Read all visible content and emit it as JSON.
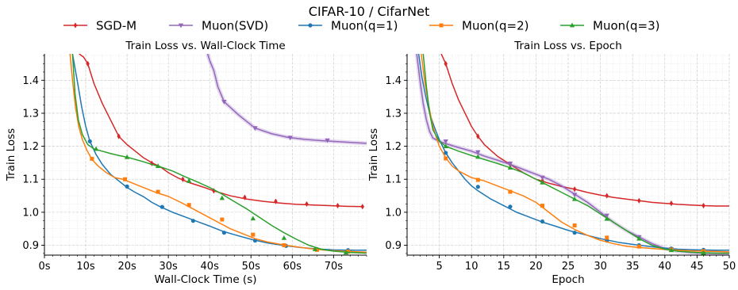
{
  "figure": {
    "suptitle": "CIFAR-10 / CifarNet"
  },
  "legend": {
    "placement": "top-center",
    "entries": [
      {
        "name": "SGD-M",
        "color": "#d62728",
        "marker": "diamond"
      },
      {
        "name": "Muon(SVD)",
        "color": "#9467bd",
        "marker": "triangle-down"
      },
      {
        "name": "Muon(q=1)",
        "color": "#1f77b4",
        "marker": "circle"
      },
      {
        "name": "Muon(q=2)",
        "color": "#ff7f0e",
        "marker": "square"
      },
      {
        "name": "Muon(q=3)",
        "color": "#2ca02c",
        "marker": "triangle-up"
      }
    ]
  },
  "chart_data": [
    {
      "type": "line",
      "title": "Train Loss vs. Wall-Clock Time",
      "xlabel": "Wall-Clock Time (s)",
      "ylabel": "Train Loss",
      "xlim": [
        0,
        78
      ],
      "ylim": [
        0.87,
        1.48
      ],
      "xticks": [
        0,
        10,
        20,
        30,
        40,
        50,
        60,
        70
      ],
      "xtick_labels": [
        "0s",
        "10s",
        "20s",
        "30s",
        "40s",
        "50s",
        "60s",
        "70s"
      ],
      "yticks": [
        0.9,
        1.0,
        1.1,
        1.2,
        1.3,
        1.4
      ],
      "ytick_labels": [
        "0.9",
        "1.0",
        "1.1",
        "1.2",
        "1.3",
        "1.4"
      ],
      "grid": true,
      "series": [
        {
          "name": "SGD-M",
          "color": "#d62728",
          "x": [
            8.4,
            9.5,
            10.5,
            12,
            14,
            16,
            18,
            20,
            22,
            24,
            26,
            28,
            30,
            32.5,
            35,
            38,
            41,
            45,
            49,
            53,
            57,
            61,
            65,
            69,
            73,
            77
          ],
          "y": [
            1.48,
            1.47,
            1.45,
            1.39,
            1.33,
            1.28,
            1.23,
            1.205,
            1.185,
            1.165,
            1.15,
            1.138,
            1.12,
            1.103,
            1.09,
            1.078,
            1.065,
            1.05,
            1.04,
            1.033,
            1.028,
            1.024,
            1.022,
            1.02,
            1.018,
            1.017
          ],
          "marker_x": [
            10.5,
            18,
            26,
            33.5,
            41,
            48.5,
            56,
            63.5,
            71,
            77
          ],
          "marker_y": [
            1.45,
            1.23,
            1.148,
            1.1,
            1.065,
            1.045,
            1.033,
            1.025,
            1.02,
            1.017
          ]
        },
        {
          "name": "Muon(SVD)",
          "color": "#9467bd",
          "x": [
            39.5,
            40,
            41,
            42,
            43.5,
            47,
            51,
            55,
            59,
            63,
            67,
            71,
            75,
            78
          ],
          "y": [
            1.48,
            1.46,
            1.43,
            1.38,
            1.335,
            1.295,
            1.255,
            1.238,
            1.227,
            1.221,
            1.217,
            1.214,
            1.211,
            1.209
          ],
          "marker_x": [
            43.5,
            51,
            59.5,
            68.5
          ],
          "marker_y": [
            1.335,
            1.255,
            1.226,
            1.218
          ]
        },
        {
          "name": "Muon(q=1)",
          "color": "#1f77b4",
          "x": [
            6.8,
            7.5,
            8.2,
            9,
            10,
            11,
            12.5,
            14,
            16,
            18,
            20,
            22,
            24,
            26,
            28,
            31,
            34,
            37,
            40,
            43,
            46,
            50,
            54,
            58,
            62,
            66,
            70,
            74,
            78
          ],
          "y": [
            1.48,
            1.43,
            1.38,
            1.32,
            1.26,
            1.215,
            1.175,
            1.145,
            1.115,
            1.095,
            1.075,
            1.06,
            1.047,
            1.03,
            1.017,
            1.0,
            0.986,
            0.972,
            0.958,
            0.943,
            0.932,
            0.918,
            0.907,
            0.899,
            0.893,
            0.889,
            0.886,
            0.885,
            0.885
          ],
          "marker_x": [
            11,
            20,
            28.5,
            36,
            43.5,
            51,
            58.5,
            66,
            73.5
          ],
          "marker_y": [
            1.215,
            1.078,
            1.016,
            0.974,
            0.938,
            0.914,
            0.898,
            0.888,
            0.885
          ]
        },
        {
          "name": "Muon(q=2)",
          "color": "#ff7f0e",
          "x": [
            6.2,
            6.8,
            7.5,
            8.3,
            9.2,
            10.2,
            11.5,
            13,
            15,
            17,
            19,
            21,
            24,
            27,
            30,
            33,
            36,
            39,
            42,
            45,
            48,
            51,
            54,
            57,
            60,
            64,
            68,
            72,
            76,
            78
          ],
          "y": [
            1.48,
            1.4,
            1.32,
            1.26,
            1.22,
            1.19,
            1.16,
            1.14,
            1.12,
            1.105,
            1.1,
            1.09,
            1.075,
            1.06,
            1.048,
            1.03,
            1.01,
            0.99,
            0.97,
            0.95,
            0.935,
            0.92,
            0.91,
            0.903,
            0.897,
            0.89,
            0.885,
            0.882,
            0.88,
            0.879
          ],
          "marker_x": [
            11.5,
            19.5,
            27.5,
            35,
            43,
            50.5,
            58,
            66,
            73.5
          ],
          "marker_y": [
            1.162,
            1.1,
            1.062,
            1.022,
            0.978,
            0.932,
            0.9,
            0.886,
            0.881
          ]
        },
        {
          "name": "Muon(q=3)",
          "color": "#2ca02c",
          "x": [
            6.8,
            7.4,
            8.2,
            9.2,
            10.5,
            12,
            14,
            16,
            18,
            20,
            22,
            24,
            26,
            28,
            31,
            34,
            37,
            40,
            43,
            46,
            49,
            52,
            55,
            58,
            61,
            64,
            67,
            70,
            74,
            78
          ],
          "y": [
            1.48,
            1.36,
            1.28,
            1.235,
            1.205,
            1.192,
            1.185,
            1.178,
            1.172,
            1.167,
            1.16,
            1.153,
            1.145,
            1.138,
            1.125,
            1.108,
            1.092,
            1.075,
            1.055,
            1.032,
            1.01,
            0.985,
            0.96,
            0.938,
            0.918,
            0.9,
            0.888,
            0.882,
            0.878,
            0.876
          ],
          "marker_x": [
            12.5,
            20,
            27.5,
            35,
            43,
            50.5,
            58,
            65.5,
            73
          ],
          "marker_y": [
            1.192,
            1.167,
            1.14,
            1.095,
            1.043,
            0.981,
            0.922,
            0.888,
            0.878
          ]
        }
      ]
    },
    {
      "type": "line",
      "title": "Train Loss vs. Epoch",
      "xlabel": "Epoch",
      "ylabel": "Train Loss",
      "xlim": [
        0,
        50
      ],
      "ylim": [
        0.87,
        1.48
      ],
      "xticks": [
        5,
        10,
        15,
        20,
        25,
        30,
        35,
        40,
        45,
        50
      ],
      "xtick_labels": [
        "5",
        "10",
        "15",
        "20",
        "25",
        "30",
        "35",
        "40",
        "45",
        "50"
      ],
      "yticks": [
        0.9,
        1.0,
        1.1,
        1.2,
        1.3,
        1.4
      ],
      "ytick_labels": [
        "0.9",
        "1.0",
        "1.1",
        "1.2",
        "1.3",
        "1.4"
      ],
      "grid": true,
      "series": [
        {
          "name": "SGD-M",
          "color": "#d62728",
          "x": [
            5.3,
            6,
            7,
            8,
            9,
            10,
            11,
            12,
            14,
            16,
            18,
            20,
            22,
            24,
            26,
            28,
            30,
            32,
            34,
            36,
            38,
            40,
            42,
            44,
            46,
            48,
            50
          ],
          "y": [
            1.48,
            1.45,
            1.39,
            1.34,
            1.3,
            1.26,
            1.23,
            1.205,
            1.17,
            1.145,
            1.12,
            1.1,
            1.088,
            1.078,
            1.07,
            1.06,
            1.052,
            1.045,
            1.04,
            1.035,
            1.03,
            1.027,
            1.024,
            1.022,
            1.02,
            1.019,
            1.019
          ],
          "marker_x": [
            6,
            11,
            16,
            21,
            26,
            31,
            36,
            41,
            46
          ],
          "marker_y": [
            1.45,
            1.23,
            1.145,
            1.095,
            1.07,
            1.05,
            1.035,
            1.027,
            1.02
          ]
        },
        {
          "name": "Muon(SVD)",
          "color": "#9467bd",
          "x": [
            1.5,
            2,
            2.5,
            3,
            3.5,
            4,
            5,
            6,
            8,
            10,
            12,
            14,
            16,
            18,
            20,
            22,
            24,
            26,
            28,
            30,
            32,
            34,
            36,
            38,
            40,
            42,
            44,
            46,
            48,
            50
          ],
          "y": [
            1.48,
            1.4,
            1.33,
            1.28,
            1.245,
            1.225,
            1.215,
            1.208,
            1.196,
            1.185,
            1.17,
            1.158,
            1.145,
            1.13,
            1.115,
            1.1,
            1.08,
            1.055,
            1.03,
            1.0,
            0.97,
            0.945,
            0.925,
            0.905,
            0.89,
            0.882,
            0.878,
            0.876,
            0.875,
            0.875
          ],
          "marker_x": [
            6,
            11,
            16,
            21,
            26,
            31,
            36,
            41,
            46
          ],
          "marker_y": [
            1.215,
            1.182,
            1.148,
            1.105,
            1.053,
            0.99,
            0.925,
            0.888,
            0.876
          ]
        },
        {
          "name": "Muon(q=1)",
          "color": "#1f77b4",
          "x": [
            1.8,
            2.3,
            2.9,
            3.5,
            4.2,
            5,
            6,
            7,
            8,
            9,
            10,
            11,
            13,
            15,
            17,
            19,
            21,
            23,
            25,
            27,
            30,
            33,
            36,
            39,
            42,
            45,
            48,
            50
          ],
          "y": [
            1.48,
            1.41,
            1.35,
            1.3,
            1.26,
            1.22,
            1.18,
            1.15,
            1.125,
            1.1,
            1.08,
            1.065,
            1.04,
            1.02,
            1.0,
            0.985,
            0.97,
            0.958,
            0.945,
            0.935,
            0.92,
            0.908,
            0.9,
            0.893,
            0.888,
            0.886,
            0.885,
            0.885
          ],
          "marker_x": [
            6,
            11,
            16,
            21,
            26,
            31,
            36,
            41,
            46
          ],
          "marker_y": [
            1.18,
            1.077,
            1.017,
            0.972,
            0.938,
            0.914,
            0.9,
            0.89,
            0.886
          ]
        },
        {
          "name": "Muon(q=2)",
          "color": "#ff7f0e",
          "x": [
            2.2,
            2.7,
            3.3,
            4,
            5,
            6,
            7,
            8,
            10,
            12,
            14,
            16,
            18,
            20,
            22,
            24,
            26,
            28,
            30,
            32,
            34,
            36,
            38,
            40,
            42,
            44,
            46,
            48,
            50
          ],
          "y": [
            1.48,
            1.4,
            1.33,
            1.26,
            1.2,
            1.165,
            1.14,
            1.125,
            1.105,
            1.095,
            1.08,
            1.065,
            1.05,
            1.03,
            1.0,
            0.97,
            0.948,
            0.93,
            0.915,
            0.905,
            0.897,
            0.893,
            0.89,
            0.887,
            0.885,
            0.883,
            0.882,
            0.881,
            0.88
          ],
          "marker_x": [
            6,
            11,
            16,
            21,
            26,
            31,
            36,
            41,
            46
          ],
          "marker_y": [
            1.163,
            1.098,
            1.062,
            1.02,
            0.96,
            0.923,
            0.896,
            0.887,
            0.882
          ]
        },
        {
          "name": "Muon(q=3)",
          "color": "#2ca02c",
          "x": [
            2.5,
            3,
            3.5,
            4,
            5,
            6,
            8,
            10,
            12,
            14,
            16,
            18,
            20,
            22,
            24,
            26,
            28,
            30,
            32,
            34,
            36,
            38,
            40,
            42,
            44,
            46,
            48,
            50
          ],
          "y": [
            1.48,
            1.38,
            1.3,
            1.25,
            1.215,
            1.2,
            1.185,
            1.172,
            1.16,
            1.148,
            1.135,
            1.12,
            1.1,
            1.08,
            1.06,
            1.04,
            1.02,
            0.995,
            0.97,
            0.945,
            0.92,
            0.9,
            0.888,
            0.882,
            0.879,
            0.877,
            0.876,
            0.876
          ],
          "marker_x": [
            6,
            11,
            16,
            21,
            26,
            31,
            36,
            41,
            46
          ],
          "marker_y": [
            1.2,
            1.168,
            1.135,
            1.09,
            1.04,
            0.98,
            0.92,
            0.885,
            0.877
          ]
        }
      ]
    }
  ]
}
